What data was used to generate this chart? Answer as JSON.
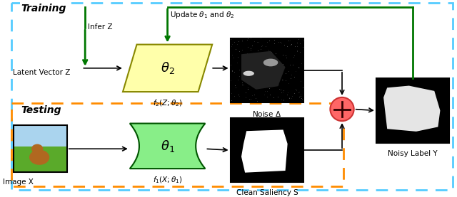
{
  "fig_width": 6.4,
  "fig_height": 2.77,
  "dpi": 100,
  "outer_box_color": "#55CCFF",
  "testing_box_color": "#FF8C00",
  "training_label": "Training",
  "testing_label": "Testing",
  "latent_vector_label": "Latent Vector Z",
  "image_x_label": "Image X",
  "theta2_label": "$\\theta_2$",
  "theta1_label": "$\\theta_1$",
  "f2_label": "$f_2(Z;\\theta_2)$",
  "f1_label": "$f_1(X;\\theta_1)$",
  "noise_label": "Noise $\\Delta$",
  "clean_saliency_label": "Clean Saliency S",
  "noisy_label": "Noisy Label Y",
  "infer_z_label": "Infer Z",
  "update_label": "Update $\\theta_1$ and $\\theta_2$",
  "theta2_box_color": "#FFFFAA",
  "theta1_box_color": "#88EE88",
  "circle_plus_color": "#FF6666",
  "green_color": "#007700"
}
